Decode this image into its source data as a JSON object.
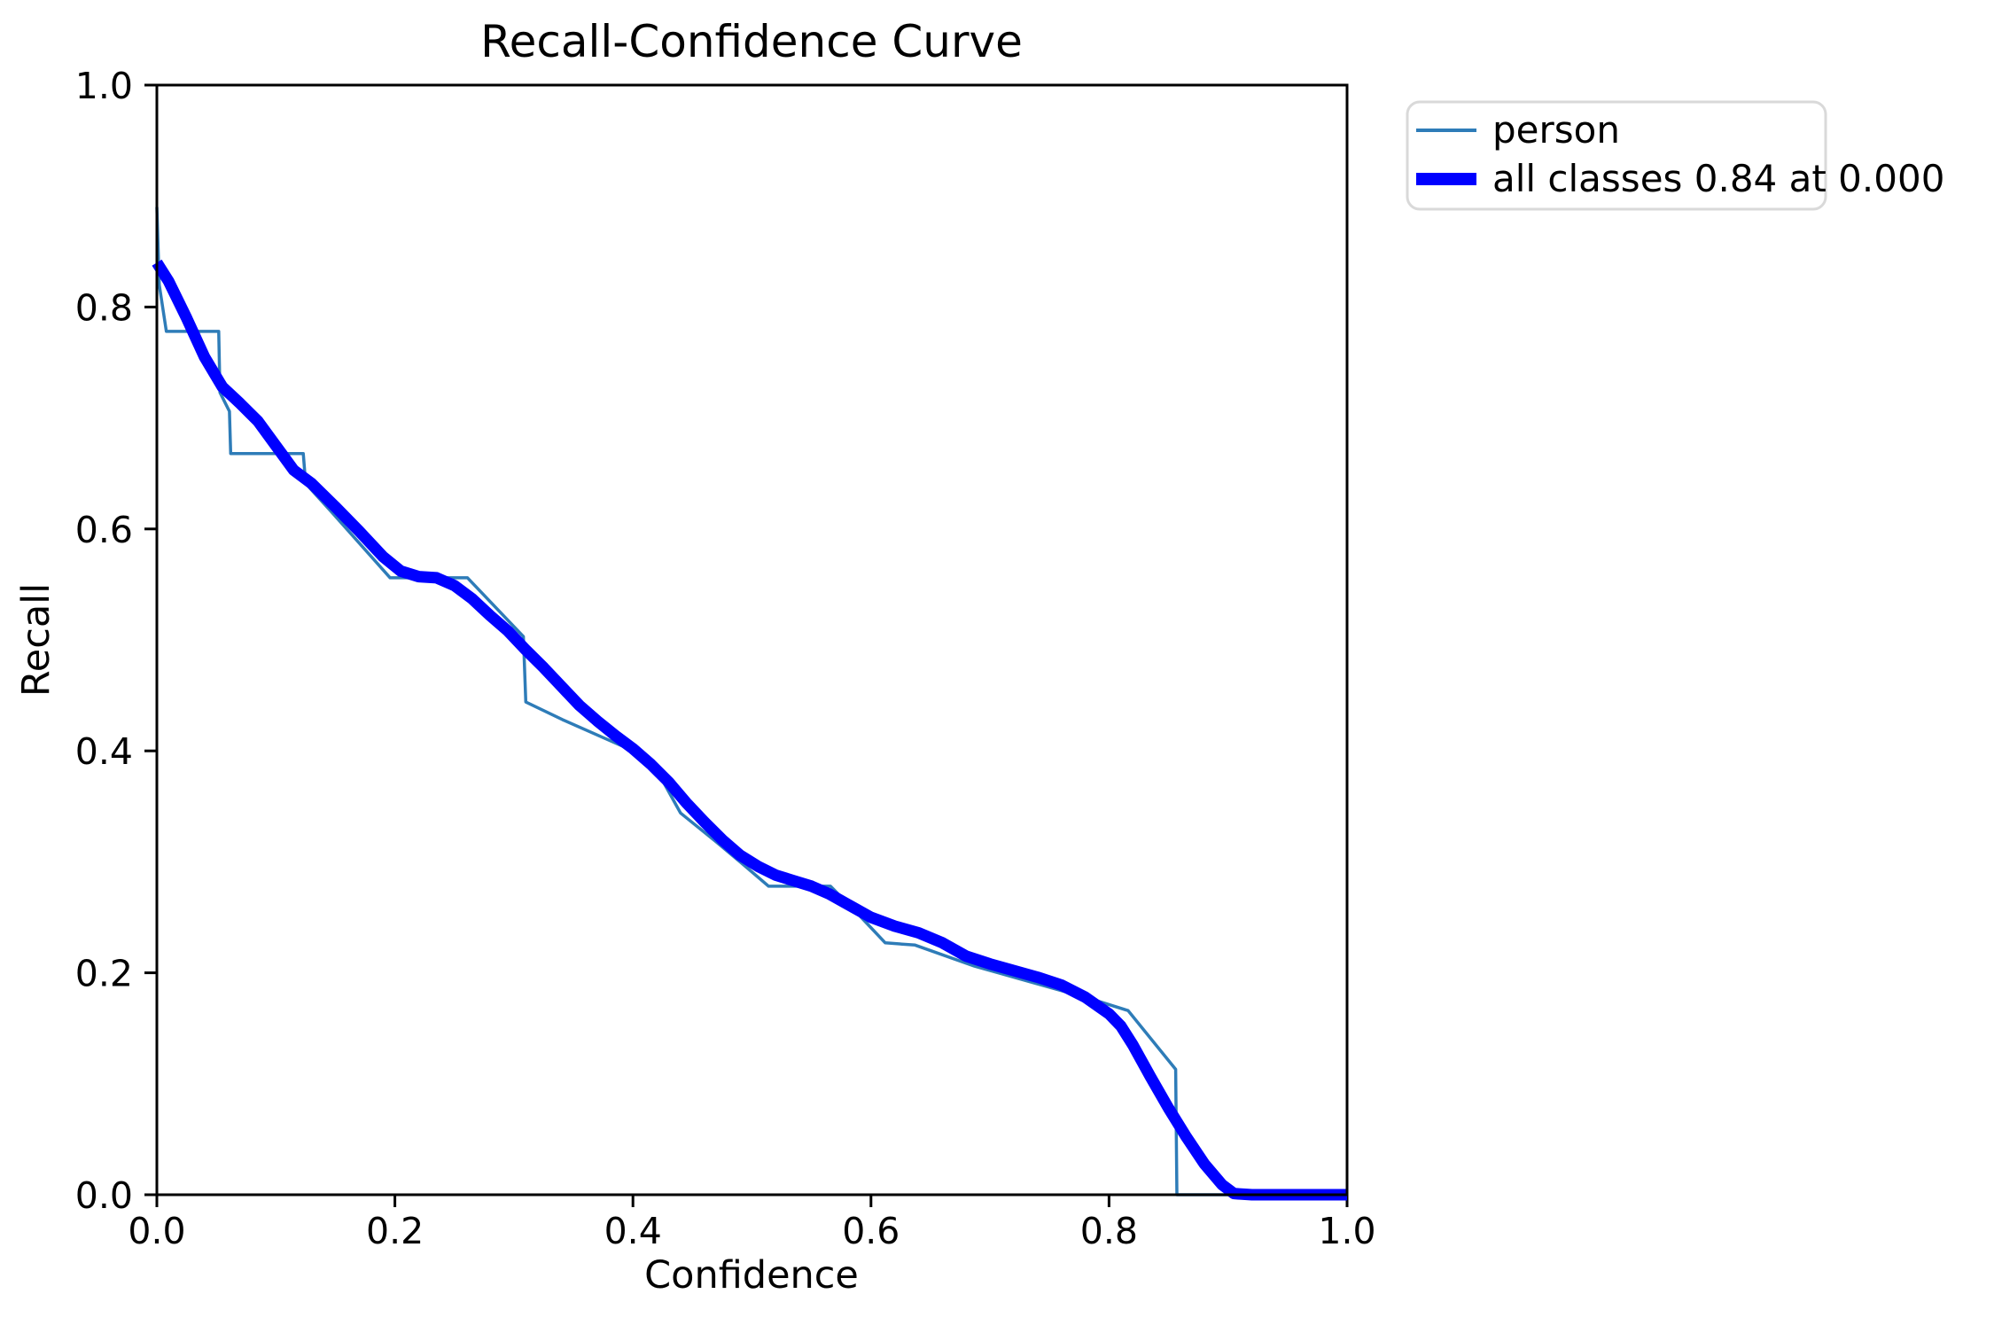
{
  "chart_data": {
    "type": "line",
    "title": "Recall-Confidence Curve",
    "xlabel": "Confidence",
    "ylabel": "Recall",
    "xlim": [
      0.0,
      1.0
    ],
    "ylim": [
      0.0,
      1.0
    ],
    "grid": false,
    "legend_position": "upper right outside plot",
    "x_tick_labels": [
      "0.0",
      "0.2",
      "0.4",
      "0.6",
      "0.8",
      "1.0"
    ],
    "y_tick_labels": [
      "0.0",
      "0.2",
      "0.4",
      "0.6",
      "0.8",
      "1.0"
    ],
    "legend": [
      "person",
      "all classes 0.84 at 0.000"
    ],
    "series": [
      {
        "name": "person",
        "color": "#2e7cb8",
        "line_width": 3.5,
        "style": "step-like per-class curve",
        "points": [
          [
            0.0,
            0.89
          ],
          [
            0.002,
            0.82
          ],
          [
            0.008,
            0.778
          ],
          [
            0.052,
            0.778
          ],
          [
            0.053,
            0.723
          ],
          [
            0.061,
            0.706
          ],
          [
            0.062,
            0.668
          ],
          [
            0.123,
            0.668
          ],
          [
            0.125,
            0.641
          ],
          [
            0.147,
            0.615
          ],
          [
            0.196,
            0.556
          ],
          [
            0.261,
            0.556
          ],
          [
            0.308,
            0.503
          ],
          [
            0.31,
            0.444
          ],
          [
            0.341,
            0.428
          ],
          [
            0.396,
            0.402
          ],
          [
            0.417,
            0.388
          ],
          [
            0.424,
            0.375
          ],
          [
            0.44,
            0.344
          ],
          [
            0.47,
            0.318
          ],
          [
            0.49,
            0.3
          ],
          [
            0.514,
            0.278
          ],
          [
            0.566,
            0.278
          ],
          [
            0.59,
            0.252
          ],
          [
            0.612,
            0.227
          ],
          [
            0.637,
            0.225
          ],
          [
            0.687,
            0.206
          ],
          [
            0.786,
            0.176
          ],
          [
            0.816,
            0.166
          ],
          [
            0.856,
            0.113
          ],
          [
            0.857,
            0.0
          ],
          [
            1.0,
            0.0
          ]
        ]
      },
      {
        "name": "all classes 0.84 at 0.000",
        "color": "#0000ff",
        "line_width": 13,
        "style": "smoothed mean curve",
        "points": [
          [
            0.0,
            0.84
          ],
          [
            0.01,
            0.823
          ],
          [
            0.025,
            0.79
          ],
          [
            0.04,
            0.755
          ],
          [
            0.055,
            0.728
          ],
          [
            0.07,
            0.713
          ],
          [
            0.085,
            0.697
          ],
          [
            0.1,
            0.675
          ],
          [
            0.115,
            0.653
          ],
          [
            0.13,
            0.641
          ],
          [
            0.15,
            0.62
          ],
          [
            0.17,
            0.598
          ],
          [
            0.19,
            0.575
          ],
          [
            0.205,
            0.562
          ],
          [
            0.22,
            0.557
          ],
          [
            0.235,
            0.556
          ],
          [
            0.25,
            0.549
          ],
          [
            0.265,
            0.537
          ],
          [
            0.28,
            0.522
          ],
          [
            0.295,
            0.508
          ],
          [
            0.31,
            0.491
          ],
          [
            0.325,
            0.475
          ],
          [
            0.34,
            0.458
          ],
          [
            0.355,
            0.441
          ],
          [
            0.37,
            0.427
          ],
          [
            0.385,
            0.414
          ],
          [
            0.4,
            0.402
          ],
          [
            0.415,
            0.388
          ],
          [
            0.43,
            0.372
          ],
          [
            0.445,
            0.353
          ],
          [
            0.46,
            0.336
          ],
          [
            0.475,
            0.32
          ],
          [
            0.49,
            0.306
          ],
          [
            0.505,
            0.296
          ],
          [
            0.52,
            0.288
          ],
          [
            0.535,
            0.283
          ],
          [
            0.55,
            0.278
          ],
          [
            0.565,
            0.271
          ],
          [
            0.58,
            0.262
          ],
          [
            0.6,
            0.25
          ],
          [
            0.62,
            0.242
          ],
          [
            0.64,
            0.236
          ],
          [
            0.66,
            0.227
          ],
          [
            0.68,
            0.215
          ],
          [
            0.7,
            0.208
          ],
          [
            0.72,
            0.202
          ],
          [
            0.74,
            0.196
          ],
          [
            0.76,
            0.189
          ],
          [
            0.78,
            0.178
          ],
          [
            0.8,
            0.163
          ],
          [
            0.81,
            0.152
          ],
          [
            0.82,
            0.135
          ],
          [
            0.835,
            0.106
          ],
          [
            0.85,
            0.078
          ],
          [
            0.865,
            0.052
          ],
          [
            0.88,
            0.028
          ],
          [
            0.895,
            0.009
          ],
          [
            0.905,
            0.001
          ],
          [
            0.92,
            0.0
          ],
          [
            1.0,
            0.0
          ]
        ]
      }
    ]
  }
}
